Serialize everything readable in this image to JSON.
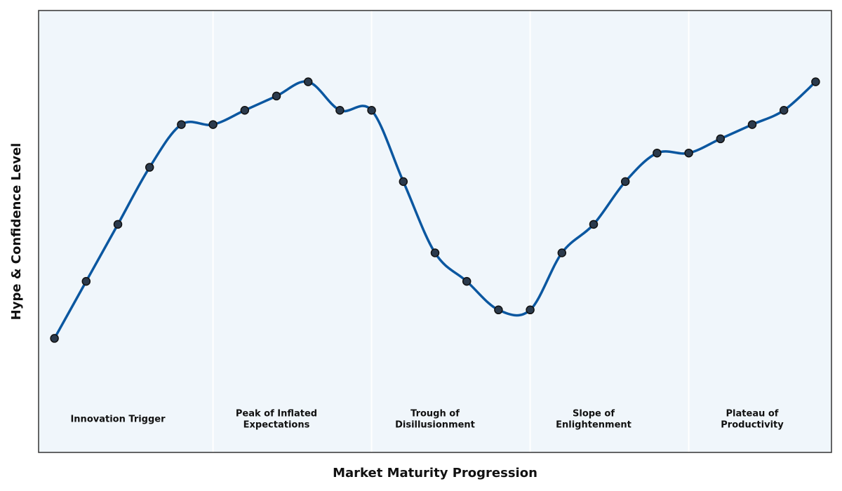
{
  "chart_data": {
    "type": "line",
    "xlabel": "Market Maturity Progression",
    "ylabel": "Hype & Confidence Level",
    "x": [
      0,
      1,
      2,
      3,
      4,
      5,
      6,
      7,
      8,
      9,
      10,
      11,
      12,
      13,
      14,
      15,
      16,
      17,
      18,
      19,
      20,
      21,
      22,
      23,
      24
    ],
    "series": [
      {
        "color": "#0b57a0",
        "marker_color": "#2b3a4c",
        "values": [
          8,
          12,
          16,
          20,
          23,
          23,
          24,
          25,
          26,
          24,
          24,
          19,
          14,
          12,
          10,
          10,
          14,
          16,
          19,
          21,
          21,
          22,
          23,
          24,
          26
        ]
      }
    ],
    "xlim": [
      -0.5,
      24.5
    ],
    "ylim": [
      0,
      31
    ],
    "background": "#f0f6fb",
    "phase_boundaries": [
      5,
      10,
      15,
      20
    ],
    "phases": [
      {
        "x": 2,
        "label": [
          "Innovation Trigger"
        ]
      },
      {
        "x": 7,
        "label": [
          "Peak of Inflated",
          "Expectations"
        ]
      },
      {
        "x": 12,
        "label": [
          "Trough of",
          "Disillusionment"
        ]
      },
      {
        "x": 17,
        "label": [
          "Slope of",
          "Enlightenment"
        ]
      },
      {
        "x": 22,
        "label": [
          "Plateau of",
          "Productivity"
        ]
      }
    ]
  }
}
